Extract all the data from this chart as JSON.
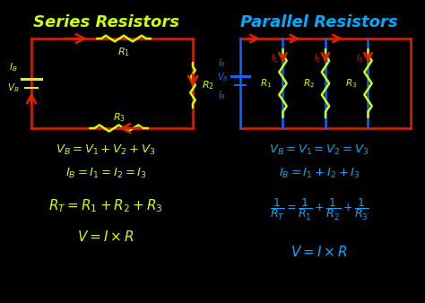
{
  "bg_color": "#000000",
  "series_title": "Series Resistors",
  "parallel_title": "Parallel Resistors",
  "yellow": "#ccff00",
  "cyan": "#00aaff",
  "red": "#dd2200",
  "green": "#ccff00",
  "blue": "#1166ff",
  "figw": 4.74,
  "figh": 3.38,
  "dpi": 100
}
